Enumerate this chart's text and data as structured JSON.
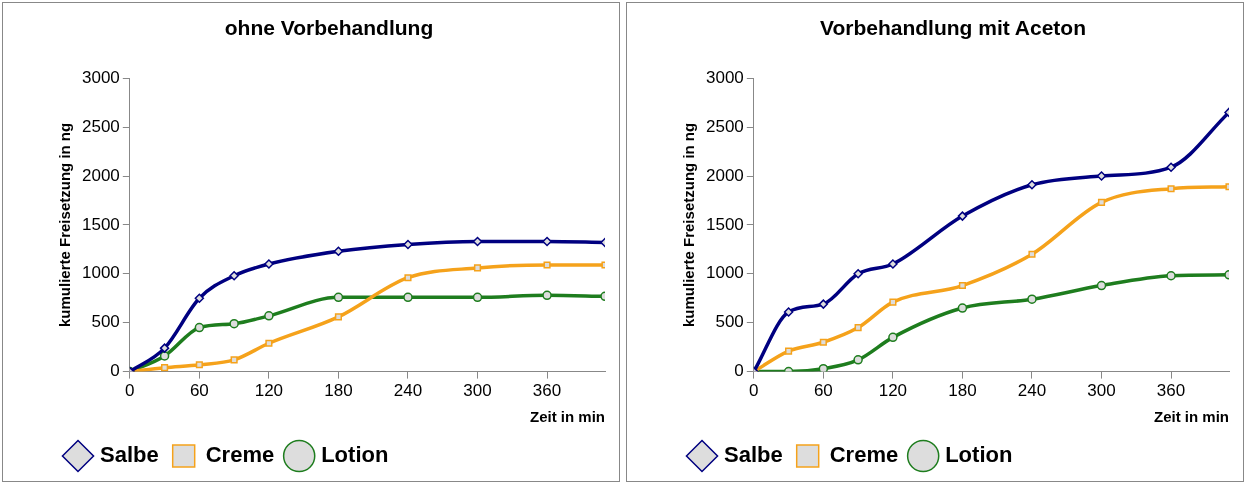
{
  "chart_data": [
    {
      "type": "line",
      "title": "ohne Vorbehandlung",
      "xlabel": "Zeit in min",
      "ylabel": "kumulierte Freisetzung in ng",
      "x": [
        0,
        30,
        60,
        90,
        120,
        180,
        240,
        300,
        360,
        410
      ],
      "xlim": [
        0,
        410
      ],
      "xticks": [
        0,
        60,
        120,
        180,
        240,
        300,
        360
      ],
      "ylim": [
        0,
        3000
      ],
      "yticks": [
        0,
        500,
        1000,
        1500,
        2000,
        2500,
        3000
      ],
      "grid": false,
      "legend": "bottom",
      "series": [
        {
          "name": "Salbe",
          "color": "#000080",
          "marker": "diamond",
          "values": [
            0,
            240,
            750,
            980,
            1100,
            1230,
            1300,
            1330,
            1330,
            1320
          ]
        },
        {
          "name": "Creme",
          "color": "#f5a21b",
          "marker": "square",
          "values": [
            0,
            40,
            70,
            120,
            290,
            560,
            960,
            1060,
            1090,
            1090
          ]
        },
        {
          "name": "Lotion",
          "color": "#1e7d1e",
          "marker": "circle",
          "values": [
            0,
            160,
            450,
            490,
            570,
            760,
            760,
            760,
            780,
            770
          ]
        }
      ]
    },
    {
      "type": "line",
      "title": "Vorbehandlung mit Aceton",
      "xlabel": "Zeit in min",
      "ylabel": "kumulierte Freisetzung in ng",
      "x": [
        0,
        30,
        60,
        90,
        120,
        180,
        240,
        300,
        360,
        410
      ],
      "xlim": [
        0,
        410
      ],
      "xticks": [
        0,
        60,
        120,
        180,
        240,
        300,
        360
      ],
      "ylim": [
        0,
        3000
      ],
      "yticks": [
        0,
        500,
        1000,
        1500,
        2000,
        2500,
        3000
      ],
      "grid": false,
      "legend": "bottom",
      "series": [
        {
          "name": "Salbe",
          "color": "#000080",
          "marker": "diamond",
          "values": [
            0,
            610,
            690,
            1000,
            1100,
            1590,
            1910,
            2000,
            2090,
            2650
          ]
        },
        {
          "name": "Creme",
          "color": "#f5a21b",
          "marker": "square",
          "values": [
            0,
            210,
            300,
            450,
            710,
            880,
            1200,
            1730,
            1870,
            1890
          ]
        },
        {
          "name": "Lotion",
          "color": "#1e7d1e",
          "marker": "circle",
          "values": [
            0,
            0,
            30,
            120,
            350,
            650,
            740,
            880,
            980,
            990
          ]
        }
      ]
    }
  ]
}
